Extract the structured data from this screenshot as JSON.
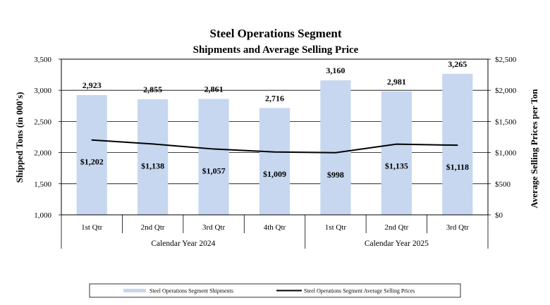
{
  "chart_data": {
    "type": "bar",
    "title": "Steel Operations Segment",
    "subtitle": "Shipments and Average Selling Price",
    "ylabel": "Shipped Tons (in 000's)",
    "y2label": "Average Selling Prices per Ton",
    "ylim": [
      1000,
      3500
    ],
    "y2lim": [
      0,
      2500
    ],
    "yticks": [
      "1,000",
      "1,500",
      "2,000",
      "2,500",
      "3,000",
      "3,500"
    ],
    "y2ticks": [
      "$0",
      "$500",
      "$1,000",
      "$1,500",
      "$2,000",
      "$2,500"
    ],
    "categories": [
      "1st Qtr",
      "2nd Qtr",
      "3rd Qtr",
      "4th Qtr",
      "1st Qtr",
      "2nd Qtr",
      "3rd Qtr"
    ],
    "groups": [
      {
        "label": "Calendar Year 2024",
        "count": 4
      },
      {
        "label": "Calendar Year 2025",
        "count": 3
      }
    ],
    "series": [
      {
        "name": "Steel Operations Segment Shipments",
        "type": "bar",
        "axis": "left",
        "color": "#c6d7ef",
        "values": [
          2923,
          2855,
          2861,
          2716,
          3160,
          2981,
          3265
        ],
        "labels": [
          "2,923",
          "2,855",
          "2,861",
          "2,716",
          "3,160",
          "2,981",
          "3,265"
        ]
      },
      {
        "name": "Steel Operations Segment Average Selling Prices",
        "type": "line",
        "axis": "right",
        "color": "#000000",
        "values": [
          1202,
          1138,
          1057,
          1009,
          998,
          1135,
          1118
        ],
        "labels": [
          "$1,202",
          "$1,138",
          "$1,057",
          "$1,009",
          "$998",
          "$1,135",
          "$1,118"
        ]
      }
    ],
    "grid": true,
    "legend": "bottom"
  }
}
